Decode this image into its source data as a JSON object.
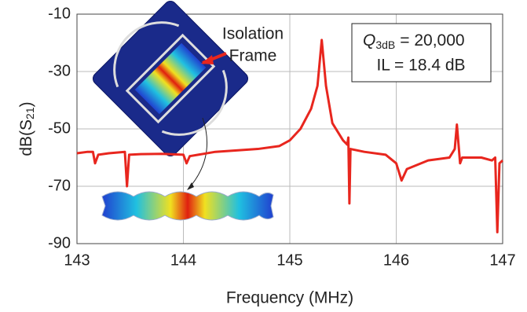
{
  "chart_data": {
    "type": "line",
    "ylabel": {
      "text": "dB(S",
      "sub": "21",
      "end": ")"
    },
    "xlabel": "Frequency (MHz)",
    "annotations": {
      "q_symbol": "Q",
      "q_sub": "3dB",
      "q_text": "= 20,000",
      "il": "IL = 18.4 dB",
      "frame": [
        "Isolation",
        "Frame"
      ]
    },
    "xlim": [
      143,
      147
    ],
    "xticks": [
      143,
      144,
      145,
      146,
      147
    ],
    "ylim": [
      -90,
      -10
    ],
    "yticks": [
      -90,
      -70,
      -50,
      -30,
      -10
    ],
    "grid": true,
    "series": [
      {
        "color": "#e8261e",
        "x": [
          143.0,
          143.1,
          143.15,
          143.17,
          143.2,
          143.3,
          143.45,
          143.47,
          143.49,
          143.6,
          143.8,
          144.0,
          144.03,
          144.06,
          144.3,
          144.5,
          144.7,
          144.9,
          145.0,
          145.1,
          145.2,
          145.26,
          145.3,
          145.34,
          145.4,
          145.5,
          145.54,
          145.55,
          145.56,
          145.57,
          145.7,
          145.9,
          146.0,
          146.05,
          146.1,
          146.3,
          146.5,
          146.55,
          146.57,
          146.6,
          146.62,
          146.8,
          146.9,
          146.93,
          146.95,
          146.97,
          147.0
        ],
        "values": [
          -58.5,
          -58,
          -58,
          -62,
          -59,
          -58.5,
          -58,
          -70,
          -59,
          -58.8,
          -58.7,
          -59,
          -62,
          -59.5,
          -58,
          -57.5,
          -57,
          -56,
          -54,
          -50,
          -43,
          -35,
          -19,
          -35,
          -48,
          -54,
          -55.5,
          -53,
          -76,
          -57,
          -58,
          -59,
          -62,
          -68,
          -64,
          -61,
          -60,
          -57,
          -48.5,
          -62,
          -60,
          -60,
          -61,
          -60,
          -86,
          -62,
          -61
        ]
      }
    ]
  }
}
